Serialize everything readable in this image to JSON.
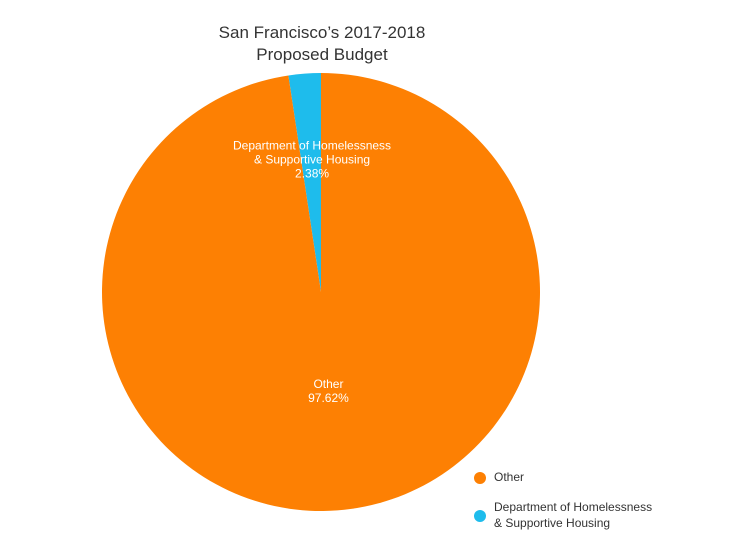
{
  "chart_data": {
    "type": "pie",
    "title": [
      "San Francisco’s 2017-2018",
      "Proposed Budget"
    ],
    "slices": [
      {
        "name": "Department of Homelessness & Supportive Housing",
        "label_lines": [
          "Department of Homelessness",
          "& Supportive Housing"
        ],
        "value": 2.38,
        "value_label": "2.38%",
        "color": "#1ebcec"
      },
      {
        "name": "Other",
        "label_lines": [
          "Other"
        ],
        "value": 97.62,
        "value_label": "97.62%",
        "color": "#fd8003"
      }
    ],
    "legend": {
      "placement": "bottom-right",
      "items": [
        {
          "label_lines": [
            "Other"
          ],
          "color": "#fd8003"
        },
        {
          "label_lines": [
            "Department of Homelessness",
            "& Supportive Housing"
          ],
          "color": "#1ebcec"
        }
      ]
    }
  }
}
